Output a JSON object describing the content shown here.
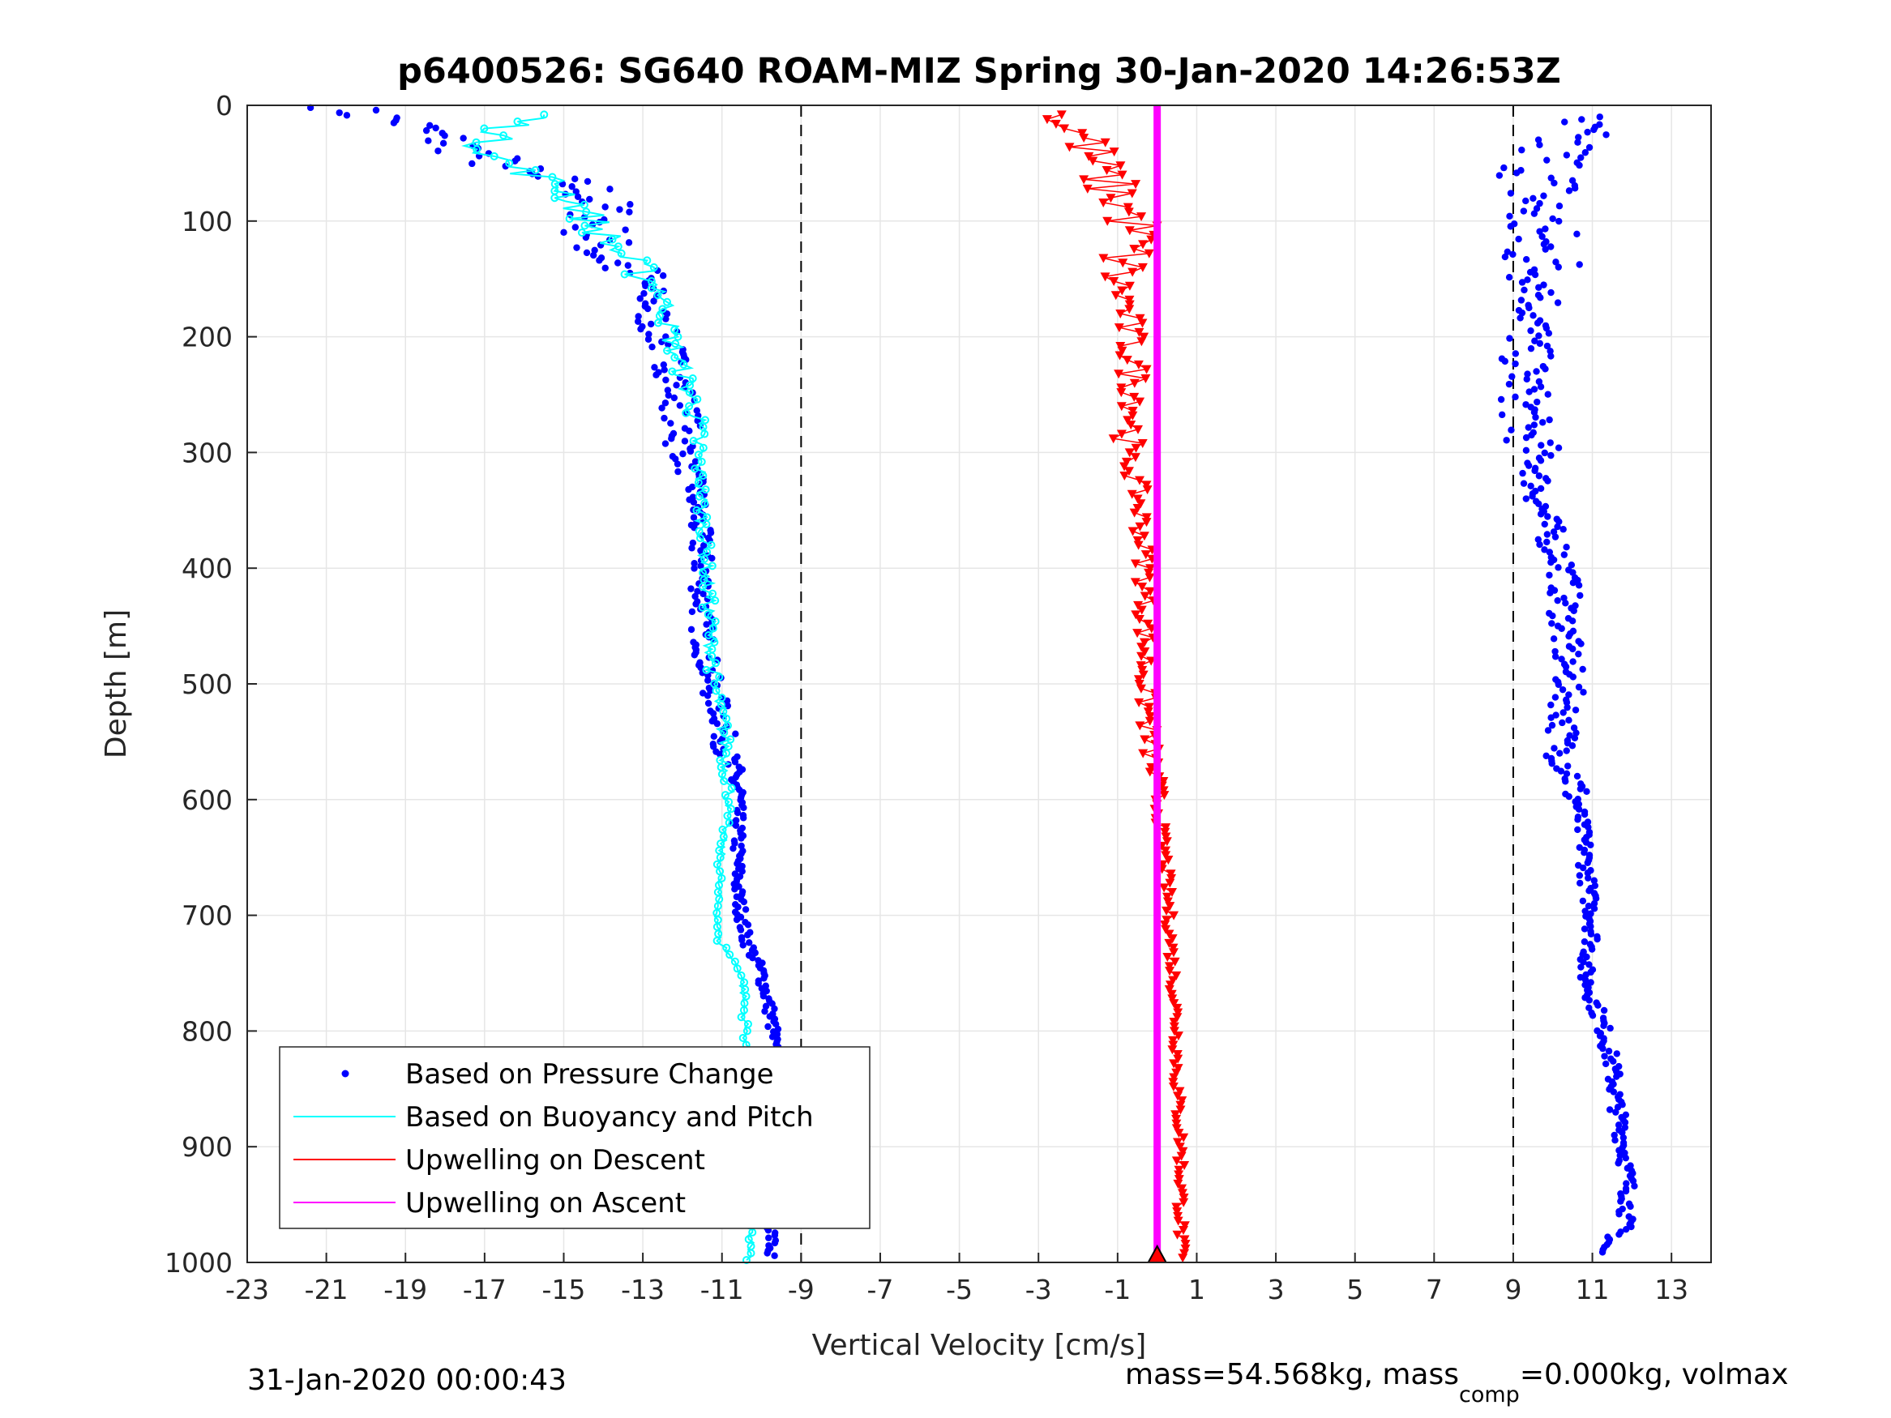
{
  "chart_data": {
    "type": "scatter",
    "title": "p6400526: SG640 ROAM-MIZ Spring 30-Jan-2020 14:26:53Z",
    "xlabel": "Vertical Velocity [cm/s]",
    "ylabel": "Depth [m]",
    "xlim": [
      -23,
      14
    ],
    "ylim": [
      0,
      1000
    ],
    "y_reversed": true,
    "grid": true,
    "x_ticks": [
      "-23",
      "-21",
      "-19",
      "-17",
      "-15",
      "-13",
      "-11",
      "-9",
      "-7",
      "-5",
      "-3",
      "-1",
      "1",
      "3",
      "5",
      "7",
      "9",
      "11",
      "13"
    ],
    "y_ticks": [
      "0",
      "100",
      "200",
      "300",
      "400",
      "500",
      "600",
      "700",
      "800",
      "900",
      "1000"
    ],
    "reference_lines_x": [
      -9,
      9
    ],
    "legend": {
      "placement": "bottom-left",
      "entries": [
        {
          "label": "Based on Pressure Change",
          "color": "#0000ff",
          "marker": "dot"
        },
        {
          "label": "Based on Buoyancy and Pitch",
          "color": "#00ffff",
          "marker": "line"
        },
        {
          "label": "Upwelling on Descent",
          "color": "#ff0000",
          "marker": "line"
        },
        {
          "label": "Upwelling on Ascent",
          "color": "#ff00ff",
          "marker": "line"
        }
      ]
    },
    "series": [
      {
        "name": "Based on Pressure Change (descent)",
        "color": "#0000ff",
        "profile": [
          [
            5,
            -20.5
          ],
          [
            15,
            -19
          ],
          [
            30,
            -18
          ],
          [
            45,
            -17
          ],
          [
            60,
            -16
          ],
          [
            70,
            -14.5
          ],
          [
            90,
            -14
          ],
          [
            110,
            -14.2
          ],
          [
            130,
            -14
          ],
          [
            150,
            -13
          ],
          [
            170,
            -12.8
          ],
          [
            190,
            -12.7
          ],
          [
            210,
            -12.4
          ],
          [
            230,
            -12.2
          ],
          [
            250,
            -12.1
          ],
          [
            270,
            -12
          ],
          [
            300,
            -12
          ],
          [
            330,
            -11.7
          ],
          [
            360,
            -11.6
          ],
          [
            400,
            -11.5
          ],
          [
            450,
            -11.5
          ],
          [
            500,
            -11.3
          ],
          [
            530,
            -11
          ],
          [
            560,
            -10.9
          ],
          [
            590,
            -10.6
          ],
          [
            620,
            -10.6
          ],
          [
            650,
            -10.6
          ],
          [
            680,
            -10.6
          ],
          [
            700,
            -10.5
          ],
          [
            720,
            -10.4
          ],
          [
            750,
            -10
          ],
          [
            780,
            -9.8
          ],
          [
            800,
            -9.7
          ],
          [
            830,
            -9.7
          ],
          [
            860,
            -9.6
          ],
          [
            900,
            -9.6
          ],
          [
            940,
            -9.7
          ],
          [
            960,
            -9.7
          ],
          [
            1000,
            -9.8
          ]
        ]
      },
      {
        "name": "Based on Buoyancy and Pitch (descent)",
        "color": "#00ffff",
        "profile": [
          [
            8,
            -15.5
          ],
          [
            20,
            -16.5
          ],
          [
            35,
            -17
          ],
          [
            50,
            -16.5
          ],
          [
            60,
            -15.8
          ],
          [
            70,
            -15
          ],
          [
            80,
            -14.8
          ],
          [
            100,
            -14.3
          ],
          [
            120,
            -13.8
          ],
          [
            140,
            -13.2
          ],
          [
            160,
            -12.5
          ],
          [
            180,
            -12.4
          ],
          [
            200,
            -12.3
          ],
          [
            230,
            -12
          ],
          [
            260,
            -11.7
          ],
          [
            300,
            -11.6
          ],
          [
            350,
            -11.5
          ],
          [
            400,
            -11.4
          ],
          [
            450,
            -11.3
          ],
          [
            500,
            -11.2
          ],
          [
            530,
            -11
          ],
          [
            560,
            -10.9
          ],
          [
            600,
            -10.8
          ],
          [
            640,
            -11
          ],
          [
            680,
            -11.1
          ],
          [
            700,
            -11.1
          ],
          [
            720,
            -11.1
          ],
          [
            750,
            -10.5
          ],
          [
            800,
            -10.4
          ],
          [
            850,
            -10.3
          ],
          [
            900,
            -10.2
          ],
          [
            950,
            -10.2
          ],
          [
            1000,
            -10.3
          ]
        ]
      },
      {
        "name": "Based on Pressure Change (ascent)",
        "color": "#0000ff",
        "profile": [
          [
            20,
            10.3
          ],
          [
            40,
            10.0
          ],
          [
            60,
            9.8
          ],
          [
            80,
            9.6
          ],
          [
            100,
            9.5
          ],
          [
            120,
            9.6
          ],
          [
            140,
            9.8
          ],
          [
            160,
            9.8
          ],
          [
            180,
            9.6
          ],
          [
            200,
            9.4
          ],
          [
            220,
            9.3
          ],
          [
            250,
            9.3
          ],
          [
            280,
            9.3
          ],
          [
            300,
            9.6
          ],
          [
            330,
            9.6
          ],
          [
            360,
            9.8
          ],
          [
            400,
            10.3
          ],
          [
            430,
            10.3
          ],
          [
            460,
            10.3
          ],
          [
            500,
            10.4
          ],
          [
            530,
            10.3
          ],
          [
            560,
            10.2
          ],
          [
            580,
            10.5
          ],
          [
            600,
            10.6
          ],
          [
            640,
            10.8
          ],
          [
            680,
            10.9
          ],
          [
            700,
            11.0
          ],
          [
            720,
            11.0
          ],
          [
            750,
            10.8
          ],
          [
            780,
            11.1
          ],
          [
            800,
            11.3
          ],
          [
            830,
            11.5
          ],
          [
            860,
            11.6
          ],
          [
            880,
            11.7
          ],
          [
            900,
            11.8
          ],
          [
            930,
            11.9
          ],
          [
            950,
            11.9
          ],
          [
            970,
            11.8
          ],
          [
            990,
            11.2
          ]
        ]
      },
      {
        "name": "Upwelling on Descent",
        "color": "#ff0000",
        "profile": [
          [
            10,
            -2.5
          ],
          [
            30,
            -1.8
          ],
          [
            50,
            -1.6
          ],
          [
            70,
            -1.2
          ],
          [
            90,
            -0.8
          ],
          [
            110,
            -0.5
          ],
          [
            130,
            -0.8
          ],
          [
            150,
            -1.0
          ],
          [
            170,
            -0.8
          ],
          [
            200,
            -0.7
          ],
          [
            230,
            -0.6
          ],
          [
            260,
            -0.5
          ],
          [
            300,
            -0.8
          ],
          [
            330,
            -0.5
          ],
          [
            360,
            -0.4
          ],
          [
            400,
            -0.3
          ],
          [
            450,
            -0.3
          ],
          [
            500,
            -0.3
          ],
          [
            550,
            -0.2
          ],
          [
            600,
            0.0
          ],
          [
            650,
            0.2
          ],
          [
            700,
            0.3
          ],
          [
            750,
            0.4
          ],
          [
            800,
            0.5
          ],
          [
            850,
            0.5
          ],
          [
            900,
            0.6
          ],
          [
            950,
            0.6
          ],
          [
            1000,
            0.6
          ]
        ]
      },
      {
        "name": "Upwelling on Ascent",
        "color": "#ff00ff",
        "profile": [
          [
            0,
            0
          ],
          [
            1000,
            0
          ]
        ]
      }
    ]
  },
  "footer": {
    "left_timestamp": "31-Jan-2020 00:00:43",
    "right_text_prefix": "mass=54.568kg, mass",
    "right_text_sub": "comp",
    "right_text_suffix": "=0.000kg, volmax"
  }
}
